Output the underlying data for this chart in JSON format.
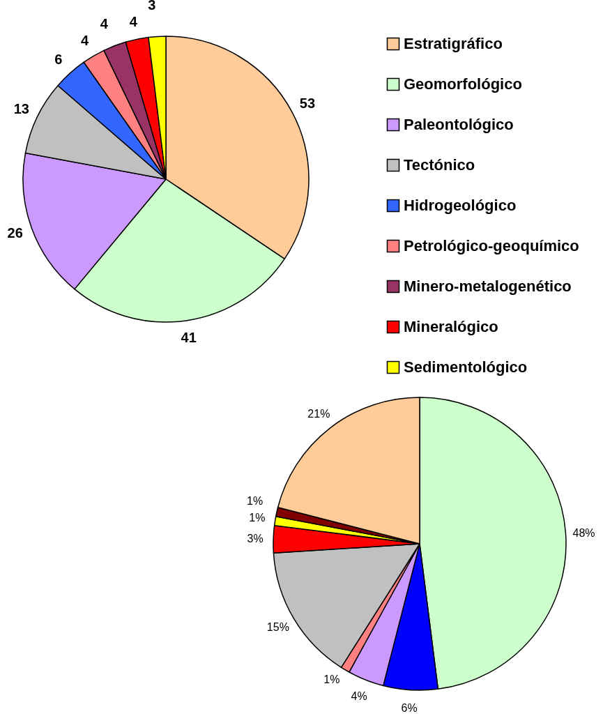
{
  "chart_data": [
    {
      "type": "pie",
      "categories": [
        "Estratigráfico",
        "Geomorfológico",
        "Paleontológico",
        "Tectónico",
        "Hidrogeológico",
        "Petrológico-geoquímico",
        "Minero-metalogenético",
        "Mineralógico",
        "Sedimentológico"
      ],
      "values": [
        53,
        41,
        26,
        13,
        6,
        4,
        4,
        4,
        3
      ],
      "colors": [
        "#ffcc99",
        "#ccffcc",
        "#cc99ff",
        "#c0c0c0",
        "#3366ff",
        "#ff8080",
        "#993366",
        "#ff0000",
        "#ffff00"
      ],
      "data_labels": true,
      "legend": "right"
    },
    {
      "type": "pie",
      "categories": [
        null,
        null,
        null,
        null,
        null,
        null,
        null,
        null,
        null
      ],
      "values": [
        48,
        6,
        4,
        1,
        15,
        3,
        1,
        1,
        21
      ],
      "colors": [
        "#ccffcc",
        "#0000ff",
        "#cc99ff",
        "#ff8080",
        "#c0c0c0",
        "#ff0000",
        "#ffff00",
        "#800000",
        "#ffcc99"
      ],
      "value_labels": [
        "48%",
        "6%",
        "4%",
        "1%",
        "15%",
        "3%",
        "1%",
        "1%",
        "21%"
      ]
    }
  ]
}
